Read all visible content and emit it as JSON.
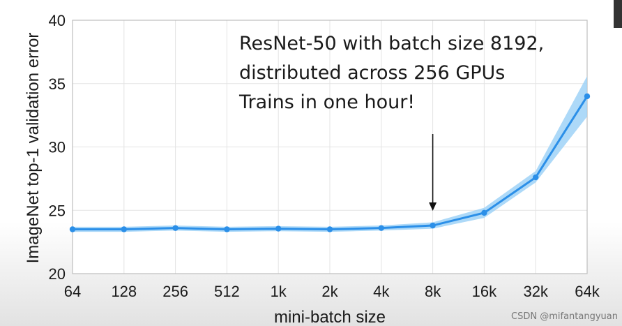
{
  "chart_data": {
    "type": "line",
    "title": "",
    "xlabel": "mini-batch size",
    "ylabel": "ImageNet top-1 validation error",
    "categories": [
      "64",
      "128",
      "256",
      "512",
      "1k",
      "2k",
      "4k",
      "8k",
      "16k",
      "32k",
      "64k"
    ],
    "series": [
      {
        "values": [
          23.5,
          23.5,
          23.6,
          23.5,
          23.55,
          23.5,
          23.6,
          23.8,
          24.8,
          27.6,
          34.0
        ],
        "band_low": [
          23.3,
          23.3,
          23.4,
          23.3,
          23.35,
          23.3,
          23.4,
          23.55,
          24.4,
          27.2,
          32.4
        ],
        "band_high": [
          23.7,
          23.7,
          23.8,
          23.7,
          23.75,
          23.7,
          23.8,
          24.05,
          25.2,
          28.1,
          35.6
        ],
        "color": "#2b8fe8",
        "band_color": "#9fd2f7"
      }
    ],
    "ylim": [
      20,
      40
    ],
    "yticks": [
      20,
      25,
      30,
      35,
      40
    ],
    "grid": true,
    "annotation": {
      "lines": [
        "ResNet-50 with batch size 8192,",
        "distributed across 256 GPUs",
        "Trains in one hour!"
      ],
      "arrow_category": "8k"
    }
  },
  "watermark": "CSDN @mifantangyuan"
}
